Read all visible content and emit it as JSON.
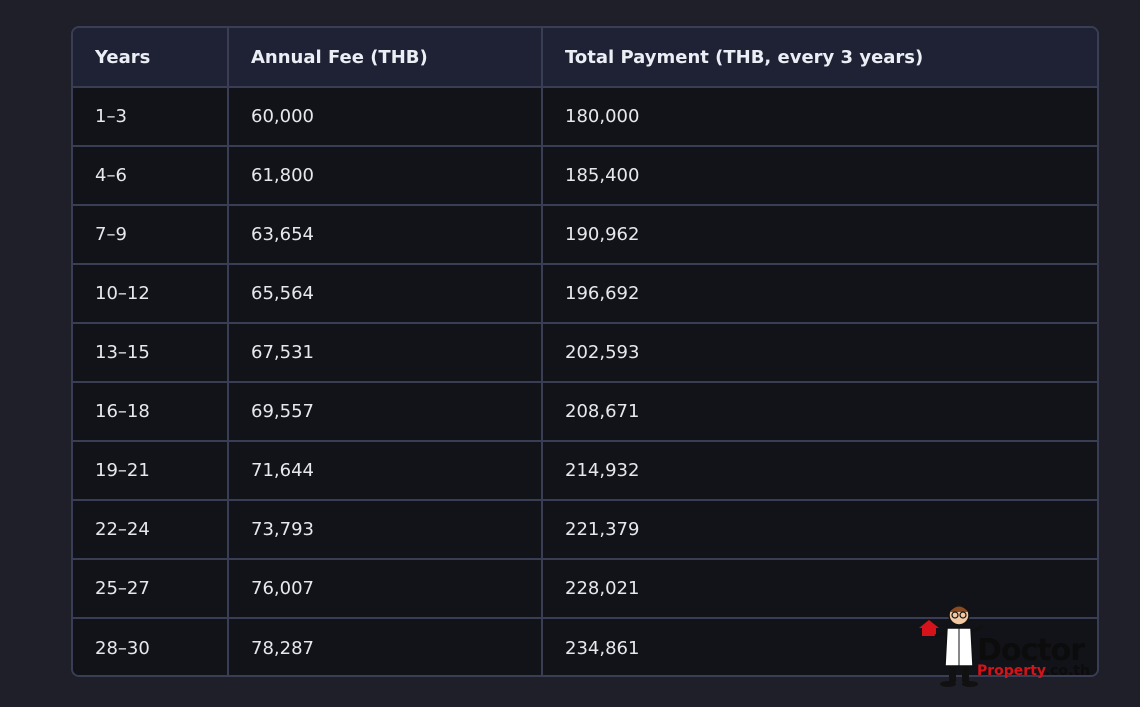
{
  "table": {
    "headers": [
      "Years",
      "Annual Fee (THB)",
      "Total Payment (THB, every 3 years)"
    ],
    "rows": [
      [
        "1–3",
        "60,000",
        "180,000"
      ],
      [
        "4–6",
        "61,800",
        "185,400"
      ],
      [
        "7–9",
        "63,654",
        "190,962"
      ],
      [
        "10–12",
        "65,564",
        "196,692"
      ],
      [
        "13–15",
        "67,531",
        "202,593"
      ],
      [
        "16–18",
        "69,557",
        "208,671"
      ],
      [
        "19–21",
        "71,644",
        "214,932"
      ],
      [
        "22–24",
        "73,793",
        "221,379"
      ],
      [
        "25–27",
        "76,007",
        "228,021"
      ],
      [
        "28–30",
        "78,287",
        "234,861"
      ]
    ]
  },
  "watermark": {
    "word": "Doctor",
    "sub_brand": "Property",
    "sub_domain": ".co.th"
  },
  "colors": {
    "background": "#1e1f29",
    "header_bg": "#1f2234",
    "cell_bg": "#111318",
    "border": "#3a3e55",
    "text": "#e7e8ee",
    "logo_red": "#d6131a"
  }
}
